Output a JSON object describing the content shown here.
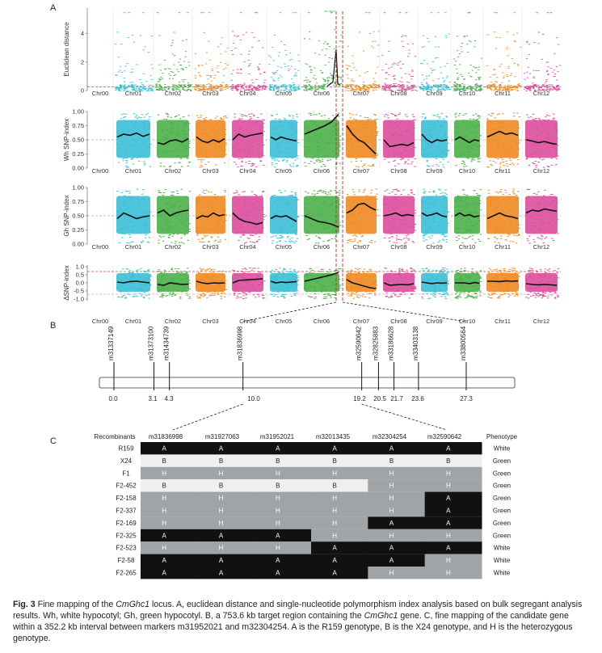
{
  "panels": {
    "a": "A",
    "b": "B",
    "c": "C"
  },
  "chromosomes": [
    "Chr00",
    "Chr01",
    "Chr02",
    "Chr03",
    "Chr04",
    "Chr05",
    "Chr06",
    "Chr07",
    "Chr08",
    "Chr09",
    "Chr10",
    "Chr11",
    "Chr12"
  ],
  "colors": {
    "Chr01": "#3bbfd6",
    "Chr02": "#4cb04a",
    "Chr03": "#f08a24",
    "Chr04": "#dd4f9e",
    "Chr05": "#3bbfd6",
    "Chr06": "#4cb04a",
    "Chr07": "#f08a24",
    "Chr08": "#dd4f9e",
    "Chr09": "#3bbfd6",
    "Chr10": "#4cb04a",
    "Chr11": "#f08a24",
    "Chr12": "#dd4f9e",
    "black": "#111111",
    "gray": "#a0a4a6",
    "light": "#efefef",
    "threshold": "#e04040"
  },
  "chart_data": [
    {
      "type": "scatter",
      "ylabel": "Euclidean distance",
      "ylim": [
        0,
        5.8
      ],
      "yticks": [
        "0",
        "2",
        "4"
      ],
      "ytick_values": [
        0,
        2,
        4
      ],
      "threshold": 0.25,
      "peak_chromosome": "Chr06"
    },
    {
      "type": "scatter",
      "ylabel": "Wh SNP-index",
      "ylim": [
        0,
        1
      ],
      "yticks": [
        "0.00",
        "0.25",
        "0.50",
        "0.75",
        "1.00"
      ],
      "ytick_values": [
        0,
        0.25,
        0.5,
        0.75,
        1
      ],
      "trend": {
        "Chr01": [
          0.55,
          0.6,
          0.58,
          0.62,
          0.56,
          0.6
        ],
        "Chr02": [
          0.45,
          0.42,
          0.48,
          0.5,
          0.46,
          0.52
        ],
        "Chr03": [
          0.55,
          0.48,
          0.45,
          0.5,
          0.46,
          0.52
        ],
        "Chr04": [
          0.5,
          0.6,
          0.55,
          0.58,
          0.6,
          0.62
        ],
        "Chr05": [
          0.55,
          0.5,
          0.55,
          0.52,
          0.5,
          0.48
        ],
        "Chr06": [
          0.6,
          0.65,
          0.7,
          0.75,
          0.82,
          0.95
        ],
        "Chr07": [
          0.75,
          0.6,
          0.5,
          0.45,
          0.35,
          0.25
        ],
        "Chr08": [
          0.5,
          0.38,
          0.4,
          0.42,
          0.4,
          0.45
        ],
        "Chr09": [
          0.6,
          0.5,
          0.45,
          0.5,
          0.48,
          0.5
        ],
        "Chr10": [
          0.5,
          0.55,
          0.5,
          0.45,
          0.5,
          0.48
        ],
        "Chr11": [
          0.55,
          0.6,
          0.65,
          0.6,
          0.62,
          0.58
        ],
        "Chr12": [
          0.5,
          0.48,
          0.45,
          0.47,
          0.44,
          0.42
        ]
      }
    },
    {
      "type": "scatter",
      "ylabel": "Gh SNP-index",
      "ylim": [
        0,
        1
      ],
      "yticks": [
        "0.00",
        "0.25",
        "0.50",
        "0.75",
        "1.00"
      ],
      "ytick_values": [
        0,
        0.25,
        0.5,
        0.75,
        1
      ],
      "trend": {
        "Chr01": [
          0.45,
          0.55,
          0.5,
          0.45,
          0.48,
          0.5
        ],
        "Chr02": [
          0.55,
          0.6,
          0.5,
          0.55,
          0.58,
          0.6
        ],
        "Chr03": [
          0.45,
          0.5,
          0.48,
          0.55,
          0.5,
          0.52
        ],
        "Chr04": [
          0.55,
          0.45,
          0.4,
          0.38,
          0.35,
          0.38
        ],
        "Chr05": [
          0.45,
          0.5,
          0.48,
          0.5,
          0.45,
          0.4
        ],
        "Chr06": [
          0.5,
          0.45,
          0.4,
          0.38,
          0.35,
          0.3
        ],
        "Chr07": [
          0.55,
          0.6,
          0.7,
          0.72,
          0.65,
          0.6
        ],
        "Chr08": [
          0.5,
          0.52,
          0.55,
          0.5,
          0.52,
          0.5
        ],
        "Chr09": [
          0.55,
          0.5,
          0.52,
          0.55,
          0.5,
          0.48
        ],
        "Chr10": [
          0.5,
          0.55,
          0.5,
          0.52,
          0.48,
          0.5
        ],
        "Chr11": [
          0.45,
          0.5,
          0.55,
          0.5,
          0.48,
          0.45
        ],
        "Chr12": [
          0.55,
          0.6,
          0.58,
          0.62,
          0.6,
          0.58
        ]
      }
    },
    {
      "type": "scatter",
      "ylabel": "ΔSNP-index",
      "ylim": [
        -1.1,
        1.1
      ],
      "yticks": [
        "-1.0",
        "-0.5",
        "0.0",
        "0.5",
        "1.0"
      ],
      "ytick_values": [
        -1,
        -0.5,
        0,
        0.5,
        1
      ],
      "threshold": 0.7,
      "threshold_neg": -0.7,
      "trend": {
        "Chr01": [
          0.05,
          0.0,
          0.08,
          0.1,
          0.05,
          0.0
        ],
        "Chr02": [
          -0.1,
          -0.15,
          0.0,
          -0.05,
          -0.1,
          -0.08
        ],
        "Chr03": [
          0.1,
          0.0,
          -0.05,
          0.0,
          -0.02,
          0.0
        ],
        "Chr04": [
          0.0,
          0.15,
          0.18,
          0.2,
          0.22,
          0.25
        ],
        "Chr05": [
          0.1,
          0.0,
          0.05,
          0.02,
          0.05,
          0.08
        ],
        "Chr06": [
          0.1,
          0.2,
          0.3,
          0.4,
          0.5,
          0.65
        ],
        "Chr07": [
          0.2,
          0.0,
          -0.1,
          -0.2,
          -0.3,
          -0.35
        ],
        "Chr08": [
          0.0,
          -0.15,
          -0.12,
          -0.1,
          -0.12,
          -0.05
        ],
        "Chr09": [
          0.05,
          0.0,
          -0.05,
          0.0,
          -0.02,
          0.0
        ],
        "Chr10": [
          0.0,
          0.0,
          0.0,
          -0.05,
          0.02,
          -0.02
        ],
        "Chr11": [
          0.1,
          0.1,
          0.08,
          0.12,
          0.1,
          0.12
        ],
        "Chr12": [
          -0.05,
          -0.1,
          -0.12,
          -0.1,
          -0.12,
          -0.15
        ]
      }
    }
  ],
  "markers_b": [
    {
      "name": "m31337149",
      "pos": "0.0",
      "value": 0.0
    },
    {
      "name": "m31373100",
      "pos": "3.1",
      "value": 3.1
    },
    {
      "name": "m31434739",
      "pos": "4.3",
      "value": 4.3
    },
    {
      "name": "m31836998",
      "pos": "10.0",
      "value": 10.0
    },
    {
      "name": "m32590642",
      "pos": "19.2",
      "value": 19.2
    },
    {
      "name": "m32825883",
      "pos": "20.5",
      "value": 20.5
    },
    {
      "name": "m33186628",
      "pos": "21.7",
      "value": 21.7
    },
    {
      "name": "m33403138",
      "pos": "23.6",
      "value": 23.6
    },
    {
      "name": "m33800564",
      "pos": "27.3",
      "value": 27.3
    }
  ],
  "recombinant_table": {
    "headers": [
      "Recombinants",
      "m31836998",
      "m31927063",
      "m31952021",
      "m32013435",
      "m32304254",
      "m32590642",
      "Phenotype"
    ],
    "rows": [
      {
        "name": "R159",
        "g": [
          "A",
          "A",
          "A",
          "A",
          "A",
          "A"
        ],
        "phenotype": "White"
      },
      {
        "name": "X24",
        "g": [
          "B",
          "B",
          "B",
          "B",
          "B",
          "B"
        ],
        "phenotype": "Green"
      },
      {
        "name": "F1",
        "g": [
          "H",
          "H",
          "H",
          "H",
          "H",
          "H"
        ],
        "phenotype": "Green"
      },
      {
        "name": "F2-452",
        "g": [
          "B",
          "B",
          "B",
          "B",
          "H",
          "H"
        ],
        "phenotype": "Green"
      },
      {
        "name": "F2-158",
        "g": [
          "H",
          "H",
          "H",
          "H",
          "H",
          "A"
        ],
        "phenotype": "Green"
      },
      {
        "name": "F2-337",
        "g": [
          "H",
          "H",
          "H",
          "H",
          "H",
          "A"
        ],
        "phenotype": "Green"
      },
      {
        "name": "F2-169",
        "g": [
          "H",
          "H",
          "H",
          "H",
          "A",
          "A"
        ],
        "phenotype": "Green"
      },
      {
        "name": "F2-325",
        "g": [
          "A",
          "A",
          "A",
          "H",
          "H",
          "H"
        ],
        "phenotype": "Green"
      },
      {
        "name": "F2-523",
        "g": [
          "H",
          "H",
          "H",
          "A",
          "A",
          "A"
        ],
        "phenotype": "White"
      },
      {
        "name": "F2-58",
        "g": [
          "A",
          "A",
          "A",
          "A",
          "A",
          "H"
        ],
        "phenotype": "White"
      },
      {
        "name": "F2-265",
        "g": [
          "A",
          "A",
          "A",
          "A",
          "H",
          "H"
        ],
        "phenotype": "White"
      }
    ]
  },
  "caption": {
    "fig": "Fig. 3",
    "p1": "Fine mapping of the ",
    "gene": "CmGhc1",
    "p2": " locus.  A, euclidean distance and single-nucleotide polymorphism index analysis based on bulk segregant analysis results.  Wh, white hypocotyl; Gh, green hypocotyl.  B, a 753.6 kb target region containing the ",
    "gene2": "CmGhc1",
    "p3": " gene.  C, fine mapping of the candidate gene within a 352.2 kb interval between markers m31952021 and m32304254.  A is the R159 genotype, B is the X24 genotype, and H is the heterozygous genotype."
  }
}
